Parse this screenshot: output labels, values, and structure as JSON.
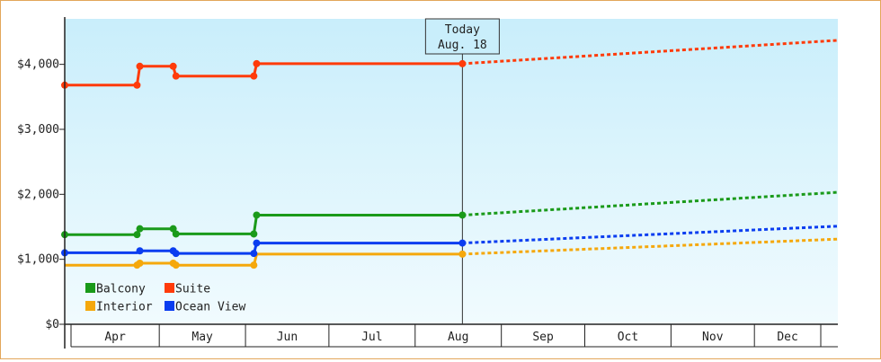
{
  "chart_data": {
    "type": "line",
    "title": "",
    "xlabel": "",
    "ylabel": "",
    "y_tick_labels": [
      "$0",
      "$1,000",
      "$2,000",
      "$3,000",
      "$4,000"
    ],
    "y_ticks": [
      0,
      1000,
      2000,
      3000,
      4000
    ],
    "ylim": [
      0,
      4700
    ],
    "x_months": [
      "Apr",
      "May",
      "Jun",
      "Jul",
      "Aug",
      "Sep",
      "Oct",
      "Nov",
      "Dec"
    ],
    "xlim": [
      "2025-03-28",
      "2025-12-31"
    ],
    "today": {
      "line1": "Today",
      "line2": "Aug. 18",
      "date": "2025-08-18"
    },
    "legend_position": "bottom-left",
    "background_gradient": [
      "#c9eefb",
      "#f1fbfe"
    ],
    "series": [
      {
        "name": "Balcony",
        "color": "#1a9a1a",
        "actual": [
          [
            "2025-03-28",
            1380
          ],
          [
            "2025-04-23",
            1380
          ],
          [
            "2025-04-24",
            1470
          ],
          [
            "2025-05-06",
            1470
          ],
          [
            "2025-05-07",
            1390
          ],
          [
            "2025-06-04",
            1390
          ],
          [
            "2025-06-05",
            1680
          ],
          [
            "2025-08-18",
            1680
          ]
        ],
        "actual_markers": [
          [
            "2025-03-28",
            1380
          ],
          [
            "2025-04-23",
            1380
          ],
          [
            "2025-04-24",
            1470
          ],
          [
            "2025-05-06",
            1470
          ],
          [
            "2025-05-07",
            1390
          ],
          [
            "2025-06-04",
            1390
          ],
          [
            "2025-06-05",
            1680
          ],
          [
            "2025-08-18",
            1680
          ]
        ],
        "projected": [
          [
            "2025-08-18",
            1680
          ],
          [
            "2025-12-31",
            2030
          ]
        ]
      },
      {
        "name": "Suite",
        "color": "#ff3b0a",
        "actual": [
          [
            "2025-03-28",
            3680
          ],
          [
            "2025-04-23",
            3680
          ],
          [
            "2025-04-24",
            3970
          ],
          [
            "2025-05-06",
            3970
          ],
          [
            "2025-05-07",
            3820
          ],
          [
            "2025-06-04",
            3820
          ],
          [
            "2025-06-05",
            4010
          ],
          [
            "2025-08-18",
            4010
          ]
        ],
        "actual_markers": [
          [
            "2025-03-28",
            3680
          ],
          [
            "2025-04-23",
            3680
          ],
          [
            "2025-04-24",
            3970
          ],
          [
            "2025-05-06",
            3970
          ],
          [
            "2025-05-07",
            3820
          ],
          [
            "2025-06-04",
            3820
          ],
          [
            "2025-06-05",
            4010
          ],
          [
            "2025-08-18",
            4010
          ]
        ],
        "projected": [
          [
            "2025-08-18",
            4010
          ],
          [
            "2025-12-31",
            4370
          ]
        ]
      },
      {
        "name": "Interior",
        "color": "#f5a80c",
        "actual": [
          [
            "2025-03-28",
            910
          ],
          [
            "2025-04-23",
            910
          ],
          [
            "2025-04-24",
            940
          ],
          [
            "2025-05-06",
            940
          ],
          [
            "2025-05-07",
            910
          ],
          [
            "2025-06-04",
            910
          ],
          [
            "2025-06-05",
            1080
          ],
          [
            "2025-08-18",
            1080
          ]
        ],
        "actual_markers": [
          [
            "2025-04-23",
            910
          ],
          [
            "2025-04-24",
            940
          ],
          [
            "2025-05-06",
            940
          ],
          [
            "2025-05-07",
            910
          ],
          [
            "2025-06-04",
            910
          ],
          [
            "2025-08-18",
            1080
          ]
        ],
        "projected": [
          [
            "2025-08-18",
            1080
          ],
          [
            "2025-12-31",
            1310
          ]
        ]
      },
      {
        "name": "Ocean View",
        "color": "#0a3df0",
        "actual": [
          [
            "2025-03-28",
            1100
          ],
          [
            "2025-04-23",
            1100
          ],
          [
            "2025-04-24",
            1130
          ],
          [
            "2025-05-06",
            1130
          ],
          [
            "2025-05-07",
            1090
          ],
          [
            "2025-06-04",
            1090
          ],
          [
            "2025-06-05",
            1250
          ],
          [
            "2025-08-18",
            1250
          ]
        ],
        "actual_markers": [
          [
            "2025-03-28",
            1100
          ],
          [
            "2025-04-24",
            1130
          ],
          [
            "2025-05-06",
            1130
          ],
          [
            "2025-05-07",
            1090
          ],
          [
            "2025-06-04",
            1090
          ],
          [
            "2025-06-05",
            1250
          ],
          [
            "2025-08-18",
            1250
          ]
        ],
        "projected": [
          [
            "2025-08-18",
            1250
          ],
          [
            "2025-12-31",
            1510
          ]
        ]
      }
    ]
  }
}
